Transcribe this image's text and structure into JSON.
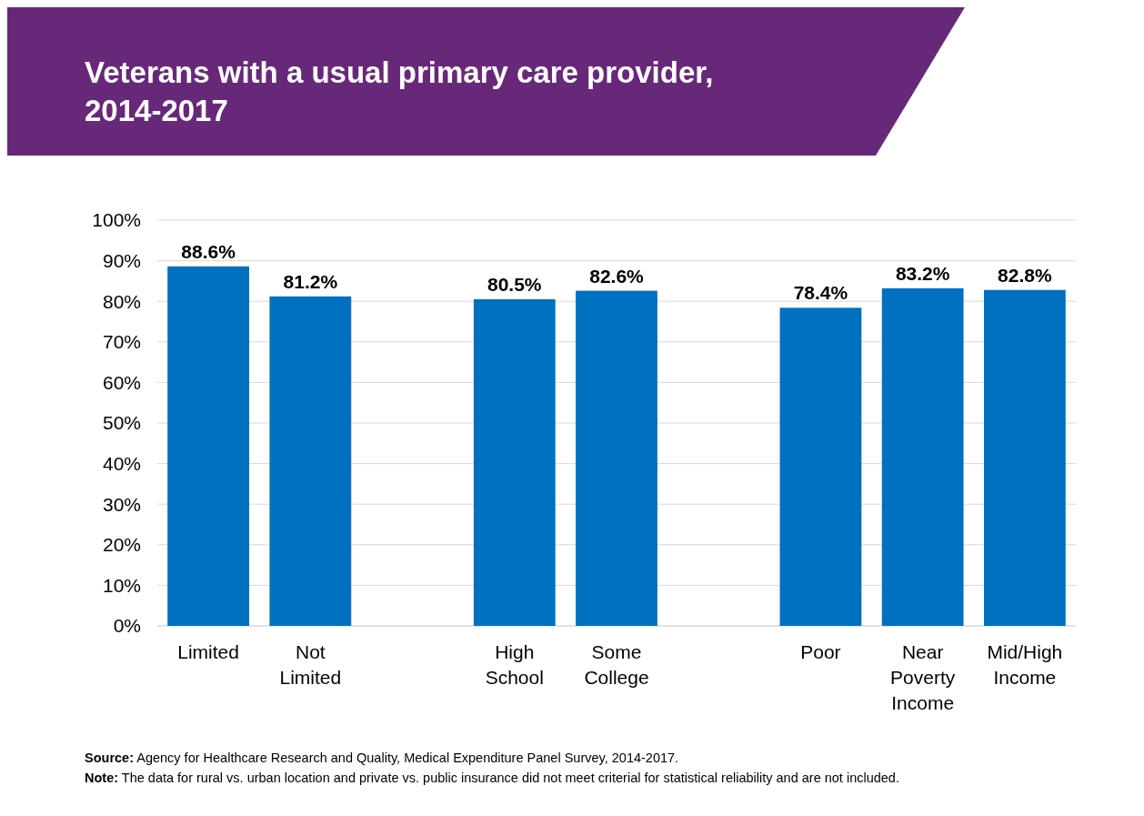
{
  "chart_data": {
    "type": "bar",
    "title": "Veterans with a usual primary care provider, 2014-2017",
    "categories": [
      "Limited",
      "Not Limited",
      null,
      "High School",
      "Some College",
      null,
      "Poor",
      "Near Poverty Income",
      "Mid/High Income"
    ],
    "values": [
      88.6,
      81.2,
      null,
      80.5,
      82.6,
      null,
      78.4,
      83.2,
      82.8
    ],
    "value_labels": [
      "88.6%",
      "81.2%",
      null,
      "80.5%",
      "82.6%",
      null,
      "78.4%",
      "83.2%",
      "82.8%"
    ],
    "color": "#0070c0",
    "ylim": [
      0,
      100
    ],
    "yticks": [
      {
        "value": 0,
        "label": "0%"
      },
      {
        "value": 10,
        "label": "10%"
      },
      {
        "value": 20,
        "label": "20%"
      },
      {
        "value": 30,
        "label": "30%"
      },
      {
        "value": 40,
        "label": "40%"
      },
      {
        "value": 50,
        "label": "50%"
      },
      {
        "value": 60,
        "label": "60%"
      },
      {
        "value": 70,
        "label": "70%"
      },
      {
        "value": 80,
        "label": "80%"
      },
      {
        "value": 90,
        "label": "90%"
      },
      {
        "value": 100,
        "label": "100%"
      }
    ],
    "grid": "y",
    "annotations": [
      "Source: Agency for Healthcare Research and Quality, Medical Expenditure Panel Survey, 2014-2017.",
      "Note: The data for rural vs. urban location and private vs. public insurance did not meet criterial for statistical reliability and are not included."
    ]
  }
}
